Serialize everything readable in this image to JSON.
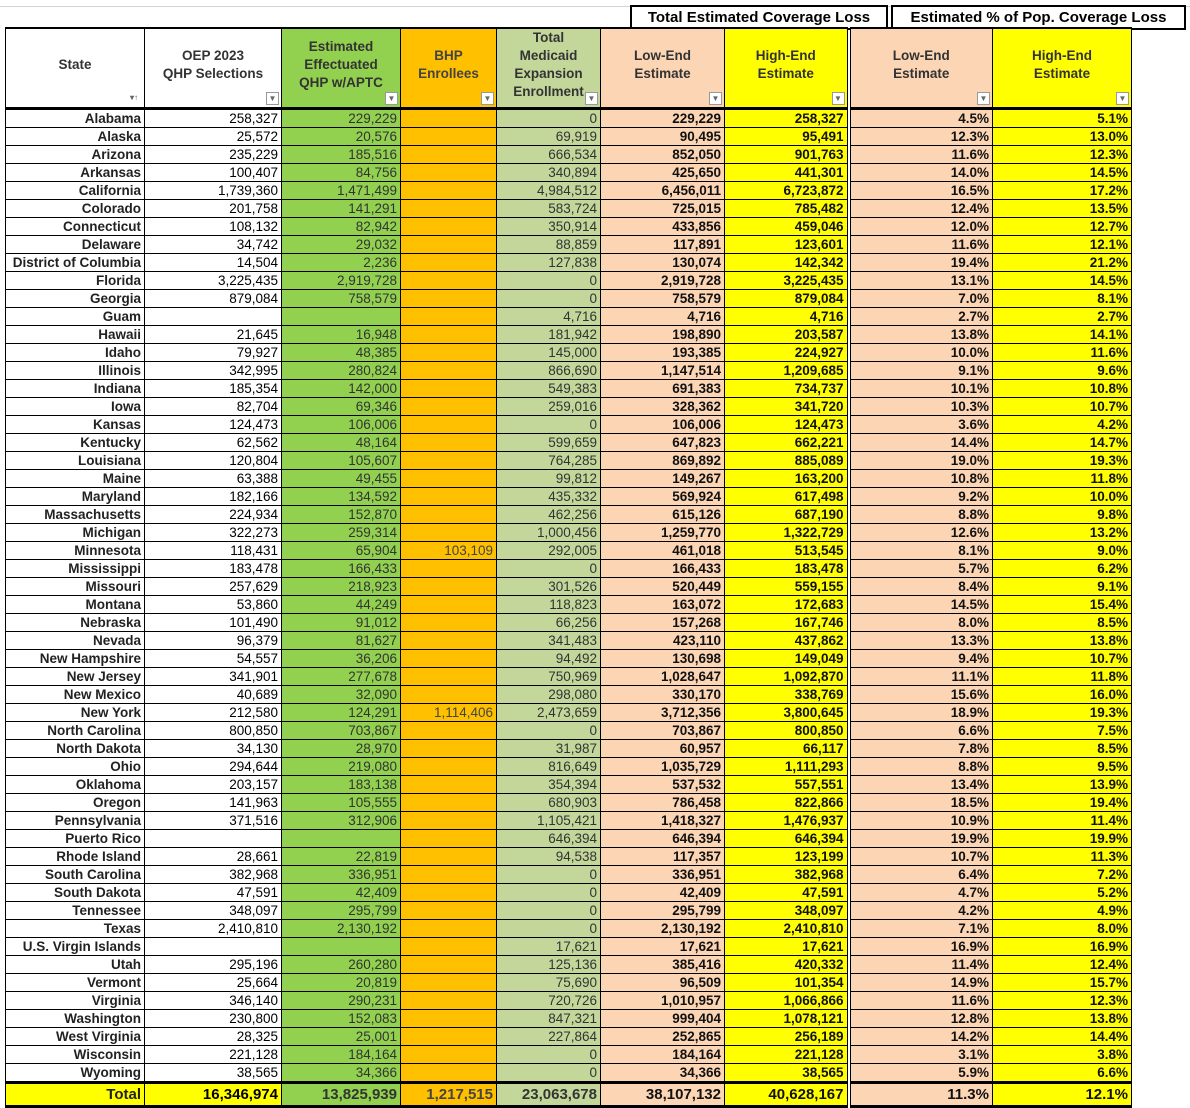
{
  "group_headers": {
    "coverage_loss": "Total Estimated Coverage Loss",
    "pct_loss": "Estimated % of Pop. Coverage Loss"
  },
  "columns": [
    [
      "State"
    ],
    [
      "OEP 2023",
      "QHP Selections"
    ],
    [
      "Estimated",
      "Effectuated",
      "QHP w/APTC"
    ],
    [
      "BHP",
      "Enrollees"
    ],
    [
      "Total",
      "Medicaid",
      "Expansion",
      "Enrollment"
    ],
    [
      "Low-End",
      "Estimate"
    ],
    [
      "High-End",
      "Estimate"
    ],
    [
      "Low-End",
      "Estimate"
    ],
    [
      "High-End",
      "Estimate"
    ]
  ],
  "colors": {
    "white": "#ffffff",
    "green": "#92d050",
    "orange": "#ffc000",
    "light_green": "#c4d79b",
    "peach": "#fcd5b4",
    "yellow": "#ffff00"
  },
  "rows": [
    [
      "Alabama",
      "258,327",
      "229,229",
      "",
      "0",
      "229,229",
      "258,327",
      "4.5%",
      "5.1%"
    ],
    [
      "Alaska",
      "25,572",
      "20,576",
      "",
      "69,919",
      "90,495",
      "95,491",
      "12.3%",
      "13.0%"
    ],
    [
      "Arizona",
      "235,229",
      "185,516",
      "",
      "666,534",
      "852,050",
      "901,763",
      "11.6%",
      "12.3%"
    ],
    [
      "Arkansas",
      "100,407",
      "84,756",
      "",
      "340,894",
      "425,650",
      "441,301",
      "14.0%",
      "14.5%"
    ],
    [
      "California",
      "1,739,360",
      "1,471,499",
      "",
      "4,984,512",
      "6,456,011",
      "6,723,872",
      "16.5%",
      "17.2%"
    ],
    [
      "Colorado",
      "201,758",
      "141,291",
      "",
      "583,724",
      "725,015",
      "785,482",
      "12.4%",
      "13.5%"
    ],
    [
      "Connecticut",
      "108,132",
      "82,942",
      "",
      "350,914",
      "433,856",
      "459,046",
      "12.0%",
      "12.7%"
    ],
    [
      "Delaware",
      "34,742",
      "29,032",
      "",
      "88,859",
      "117,891",
      "123,601",
      "11.6%",
      "12.1%"
    ],
    [
      "District of Columbia",
      "14,504",
      "2,236",
      "",
      "127,838",
      "130,074",
      "142,342",
      "19.4%",
      "21.2%"
    ],
    [
      "Florida",
      "3,225,435",
      "2,919,728",
      "",
      "0",
      "2,919,728",
      "3,225,435",
      "13.1%",
      "14.5%"
    ],
    [
      "Georgia",
      "879,084",
      "758,579",
      "",
      "0",
      "758,579",
      "879,084",
      "7.0%",
      "8.1%"
    ],
    [
      "Guam",
      "",
      "",
      "",
      "4,716",
      "4,716",
      "4,716",
      "2.7%",
      "2.7%"
    ],
    [
      "Hawaii",
      "21,645",
      "16,948",
      "",
      "181,942",
      "198,890",
      "203,587",
      "13.8%",
      "14.1%"
    ],
    [
      "Idaho",
      "79,927",
      "48,385",
      "",
      "145,000",
      "193,385",
      "224,927",
      "10.0%",
      "11.6%"
    ],
    [
      "Illinois",
      "342,995",
      "280,824",
      "",
      "866,690",
      "1,147,514",
      "1,209,685",
      "9.1%",
      "9.6%"
    ],
    [
      "Indiana",
      "185,354",
      "142,000",
      "",
      "549,383",
      "691,383",
      "734,737",
      "10.1%",
      "10.8%"
    ],
    [
      "Iowa",
      "82,704",
      "69,346",
      "",
      "259,016",
      "328,362",
      "341,720",
      "10.3%",
      "10.7%"
    ],
    [
      "Kansas",
      "124,473",
      "106,006",
      "",
      "0",
      "106,006",
      "124,473",
      "3.6%",
      "4.2%"
    ],
    [
      "Kentucky",
      "62,562",
      "48,164",
      "",
      "599,659",
      "647,823",
      "662,221",
      "14.4%",
      "14.7%"
    ],
    [
      "Louisiana",
      "120,804",
      "105,607",
      "",
      "764,285",
      "869,892",
      "885,089",
      "19.0%",
      "19.3%"
    ],
    [
      "Maine",
      "63,388",
      "49,455",
      "",
      "99,812",
      "149,267",
      "163,200",
      "10.8%",
      "11.8%"
    ],
    [
      "Maryland",
      "182,166",
      "134,592",
      "",
      "435,332",
      "569,924",
      "617,498",
      "9.2%",
      "10.0%"
    ],
    [
      "Massachusetts",
      "224,934",
      "152,870",
      "",
      "462,256",
      "615,126",
      "687,190",
      "8.8%",
      "9.8%"
    ],
    [
      "Michigan",
      "322,273",
      "259,314",
      "",
      "1,000,456",
      "1,259,770",
      "1,322,729",
      "12.6%",
      "13.2%"
    ],
    [
      "Minnesota",
      "118,431",
      "65,904",
      "103,109",
      "292,005",
      "461,018",
      "513,545",
      "8.1%",
      "9.0%"
    ],
    [
      "Mississippi",
      "183,478",
      "166,433",
      "",
      "0",
      "166,433",
      "183,478",
      "5.7%",
      "6.2%"
    ],
    [
      "Missouri",
      "257,629",
      "218,923",
      "",
      "301,526",
      "520,449",
      "559,155",
      "8.4%",
      "9.1%"
    ],
    [
      "Montana",
      "53,860",
      "44,249",
      "",
      "118,823",
      "163,072",
      "172,683",
      "14.5%",
      "15.4%"
    ],
    [
      "Nebraska",
      "101,490",
      "91,012",
      "",
      "66,256",
      "157,268",
      "167,746",
      "8.0%",
      "8.5%"
    ],
    [
      "Nevada",
      "96,379",
      "81,627",
      "",
      "341,483",
      "423,110",
      "437,862",
      "13.3%",
      "13.8%"
    ],
    [
      "New Hampshire",
      "54,557",
      "36,206",
      "",
      "94,492",
      "130,698",
      "149,049",
      "9.4%",
      "10.7%"
    ],
    [
      "New Jersey",
      "341,901",
      "277,678",
      "",
      "750,969",
      "1,028,647",
      "1,092,870",
      "11.1%",
      "11.8%"
    ],
    [
      "New Mexico",
      "40,689",
      "32,090",
      "",
      "298,080",
      "330,170",
      "338,769",
      "15.6%",
      "16.0%"
    ],
    [
      "New York",
      "212,580",
      "124,291",
      "1,114,406",
      "2,473,659",
      "3,712,356",
      "3,800,645",
      "18.9%",
      "19.3%"
    ],
    [
      "North Carolina",
      "800,850",
      "703,867",
      "",
      "0",
      "703,867",
      "800,850",
      "6.6%",
      "7.5%"
    ],
    [
      "North Dakota",
      "34,130",
      "28,970",
      "",
      "31,987",
      "60,957",
      "66,117",
      "7.8%",
      "8.5%"
    ],
    [
      "Ohio",
      "294,644",
      "219,080",
      "",
      "816,649",
      "1,035,729",
      "1,111,293",
      "8.8%",
      "9.5%"
    ],
    [
      "Oklahoma",
      "203,157",
      "183,138",
      "",
      "354,394",
      "537,532",
      "557,551",
      "13.4%",
      "13.9%"
    ],
    [
      "Oregon",
      "141,963",
      "105,555",
      "",
      "680,903",
      "786,458",
      "822,866",
      "18.5%",
      "19.4%"
    ],
    [
      "Pennsylvania",
      "371,516",
      "312,906",
      "",
      "1,105,421",
      "1,418,327",
      "1,476,937",
      "10.9%",
      "11.4%"
    ],
    [
      "Puerto Rico",
      "",
      "",
      "",
      "646,394",
      "646,394",
      "646,394",
      "19.9%",
      "19.9%"
    ],
    [
      "Rhode Island",
      "28,661",
      "22,819",
      "",
      "94,538",
      "117,357",
      "123,199",
      "10.7%",
      "11.3%"
    ],
    [
      "South Carolina",
      "382,968",
      "336,951",
      "",
      "0",
      "336,951",
      "382,968",
      "6.4%",
      "7.2%"
    ],
    [
      "South Dakota",
      "47,591",
      "42,409",
      "",
      "0",
      "42,409",
      "47,591",
      "4.7%",
      "5.2%"
    ],
    [
      "Tennessee",
      "348,097",
      "295,799",
      "",
      "0",
      "295,799",
      "348,097",
      "4.2%",
      "4.9%"
    ],
    [
      "Texas",
      "2,410,810",
      "2,130,192",
      "",
      "0",
      "2,130,192",
      "2,410,810",
      "7.1%",
      "8.0%"
    ],
    [
      "U.S. Virgin Islands",
      "",
      "",
      "",
      "17,621",
      "17,621",
      "17,621",
      "16.9%",
      "16.9%"
    ],
    [
      "Utah",
      "295,196",
      "260,280",
      "",
      "125,136",
      "385,416",
      "420,332",
      "11.4%",
      "12.4%"
    ],
    [
      "Vermont",
      "25,664",
      "20,819",
      "",
      "75,690",
      "96,509",
      "101,354",
      "14.9%",
      "15.7%"
    ],
    [
      "Virginia",
      "346,140",
      "290,231",
      "",
      "720,726",
      "1,010,957",
      "1,066,866",
      "11.6%",
      "12.3%"
    ],
    [
      "Washington",
      "230,800",
      "152,083",
      "",
      "847,321",
      "999,404",
      "1,078,121",
      "12.8%",
      "13.8%"
    ],
    [
      "West Virginia",
      "28,325",
      "25,001",
      "",
      "227,864",
      "252,865",
      "256,189",
      "14.2%",
      "14.4%"
    ],
    [
      "Wisconsin",
      "221,128",
      "184,164",
      "",
      "0",
      "184,164",
      "221,128",
      "3.1%",
      "3.8%"
    ],
    [
      "Wyoming",
      "38,565",
      "34,366",
      "",
      "0",
      "34,366",
      "38,565",
      "5.9%",
      "6.6%"
    ]
  ],
  "total": [
    "Total",
    "16,346,974",
    "13,825,939",
    "1,217,515",
    "23,063,678",
    "38,107,132",
    "40,628,167",
    "11.3%",
    "12.1%"
  ]
}
